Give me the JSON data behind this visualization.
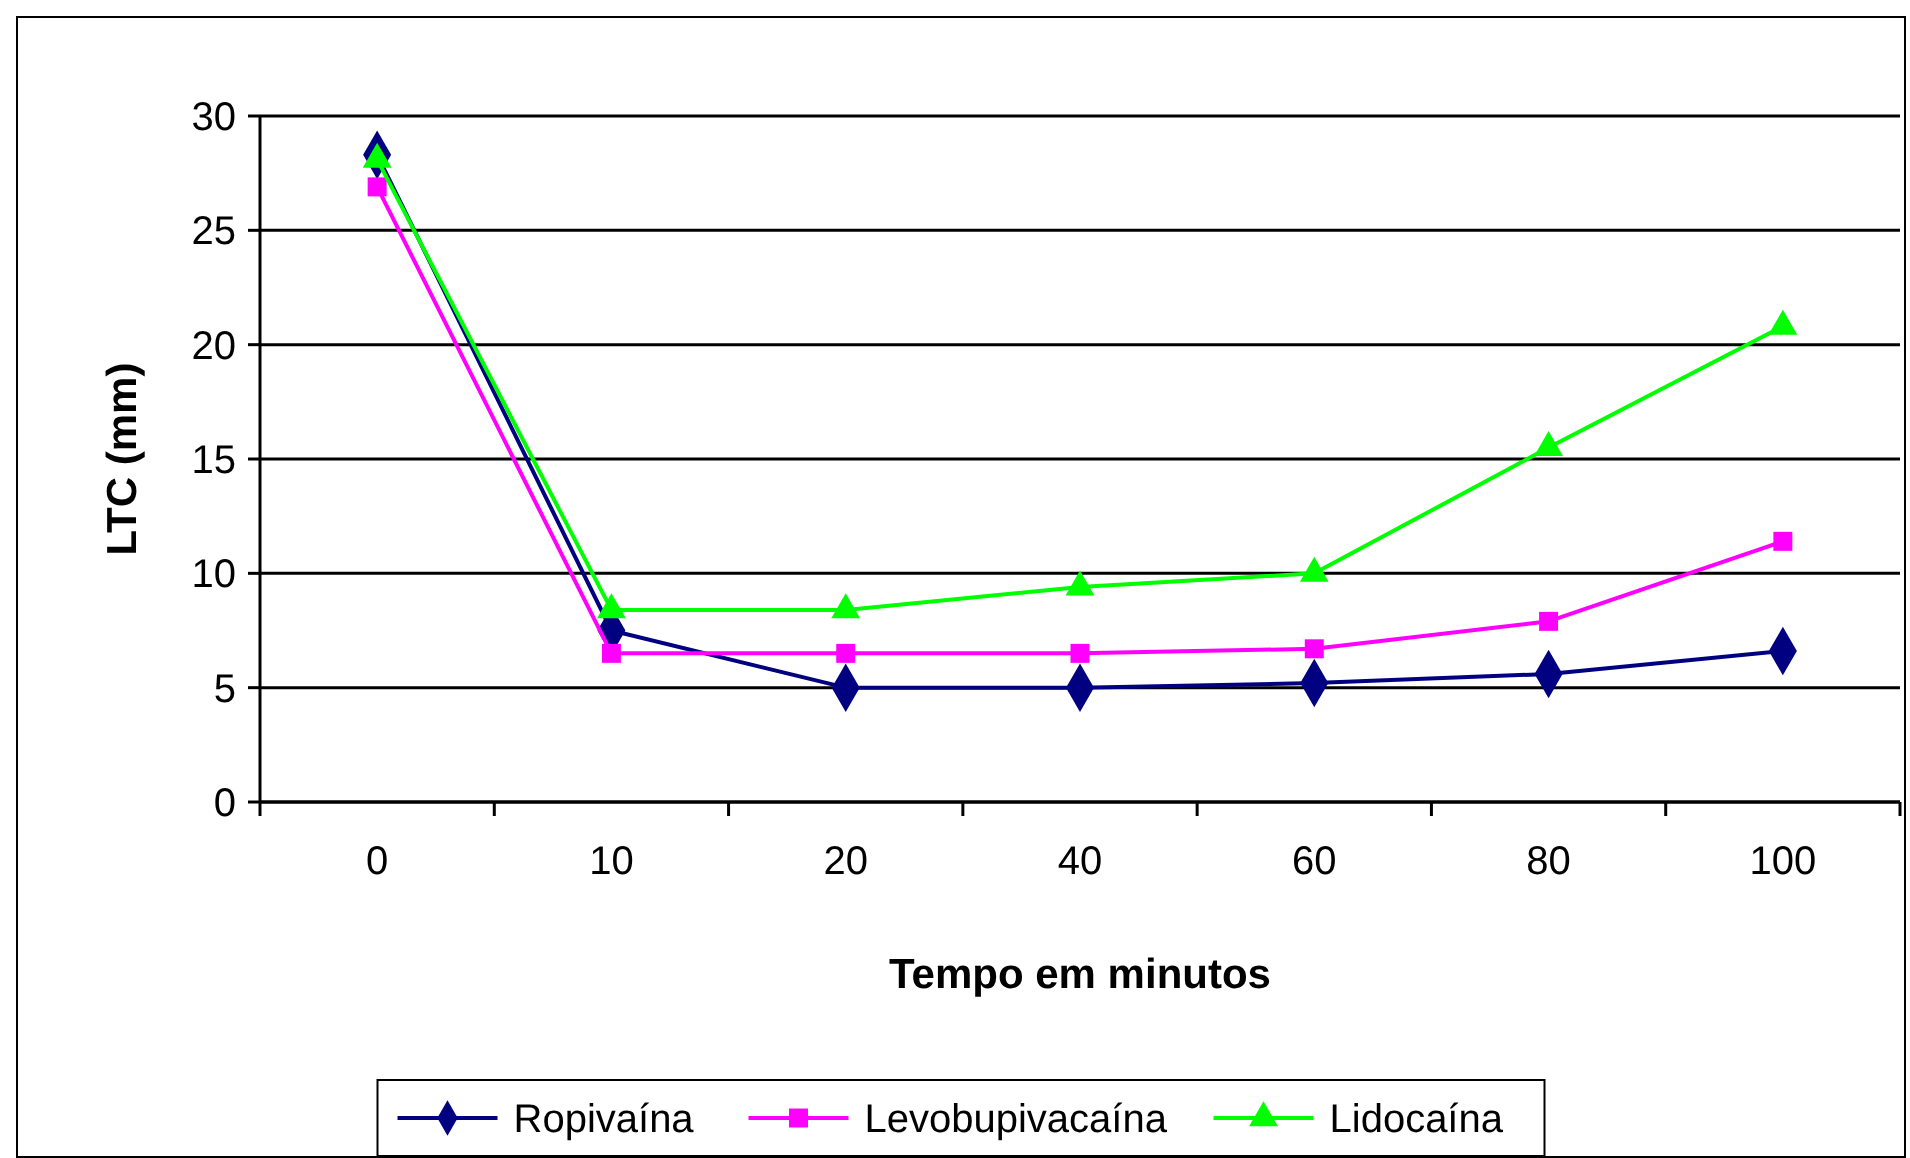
{
  "chart_data": {
    "type": "line",
    "xlabel": "Tempo em minutos",
    "ylabel": "LTC (mm)",
    "categories": [
      "0",
      "10",
      "20",
      "40",
      "60",
      "80",
      "100"
    ],
    "ylim": [
      0,
      30
    ],
    "yticks": [
      0,
      5,
      10,
      15,
      20,
      25,
      30
    ],
    "grid": "y",
    "legend": "bottom",
    "series": [
      {
        "name": "Ropivaína",
        "color": "#000080",
        "marker": "diamond",
        "values": [
          28.3,
          7.5,
          5.0,
          5.0,
          5.2,
          5.6,
          6.6
        ]
      },
      {
        "name": "Levobupivacaína",
        "color": "#ff00ff",
        "marker": "square",
        "values": [
          26.9,
          6.5,
          6.5,
          6.5,
          6.7,
          7.9,
          11.4
        ]
      },
      {
        "name": "Lidocaína",
        "color": "#00ff00",
        "marker": "triangle",
        "values": [
          28.1,
          8.4,
          8.4,
          9.4,
          10.0,
          15.5,
          20.8
        ]
      }
    ]
  }
}
